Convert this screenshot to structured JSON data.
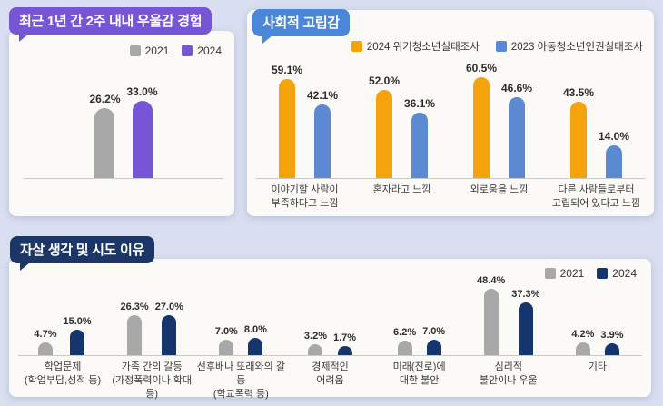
{
  "page": {
    "background_color": "#d9dff0",
    "panel_color": "#fbfaf6",
    "unit": "%"
  },
  "chart_data": [
    {
      "type": "bar",
      "title": "최근 1년 간 2주 내내 우울감 경험",
      "badge_color": "#7656d4",
      "categories": [
        ""
      ],
      "series": [
        {
          "name": "2021",
          "color": "#a8a8a8",
          "values": [
            26.2
          ]
        },
        {
          "name": "2024",
          "color": "#7656d4",
          "values": [
            33.0
          ]
        }
      ],
      "legend_position": "top-right",
      "ylabel": "",
      "xlabel": "",
      "grid": false
    },
    {
      "type": "bar",
      "title": "사회적 고립감",
      "badge_color": "#4a87d9",
      "categories": [
        [
          "이야기할 사람이",
          "부족하다고 느낌"
        ],
        [
          "혼자라고 느낌"
        ],
        [
          "외로움을 느낌"
        ],
        [
          "다른 사람들로부터",
          "고립되어 있다고 느낌"
        ]
      ],
      "series": [
        {
          "name": "2024 위기청소년실태조사",
          "color": "#f5a30d",
          "values": [
            59.1,
            52.0,
            60.5,
            43.5
          ]
        },
        {
          "name": "2023 아동청소년인권실태조사",
          "color": "#5b8ad2",
          "values": [
            42.1,
            36.1,
            46.6,
            14.0
          ]
        }
      ],
      "legend_position": "top-right",
      "ylabel": "",
      "xlabel": "",
      "grid": false
    },
    {
      "type": "bar",
      "title": "자살 생각 및 시도 이유",
      "badge_color": "#1c3767",
      "categories": [
        [
          "학업문제",
          "(학업부담,성적 등)"
        ],
        [
          "가족 간의 갈등",
          "(가정폭력이나 학대 등)"
        ],
        [
          "선후배나 또래와의 갈등",
          "(학교폭력 등)"
        ],
        [
          "경제적인",
          "어려움"
        ],
        [
          "미래(진로)에",
          "대한 불안"
        ],
        [
          "심리적",
          "불안이나 우울"
        ],
        [
          "기타"
        ]
      ],
      "series": [
        {
          "name": "2021",
          "color": "#a8a8a8",
          "values": [
            4.7,
            26.3,
            7.0,
            3.2,
            6.2,
            48.4,
            4.2
          ]
        },
        {
          "name": "2024",
          "color": "#16356d",
          "values": [
            15.0,
            27.0,
            8.0,
            1.7,
            7.0,
            37.3,
            3.9
          ]
        }
      ],
      "legend_position": "top-right",
      "ylabel": "",
      "xlabel": "",
      "grid": false
    }
  ]
}
